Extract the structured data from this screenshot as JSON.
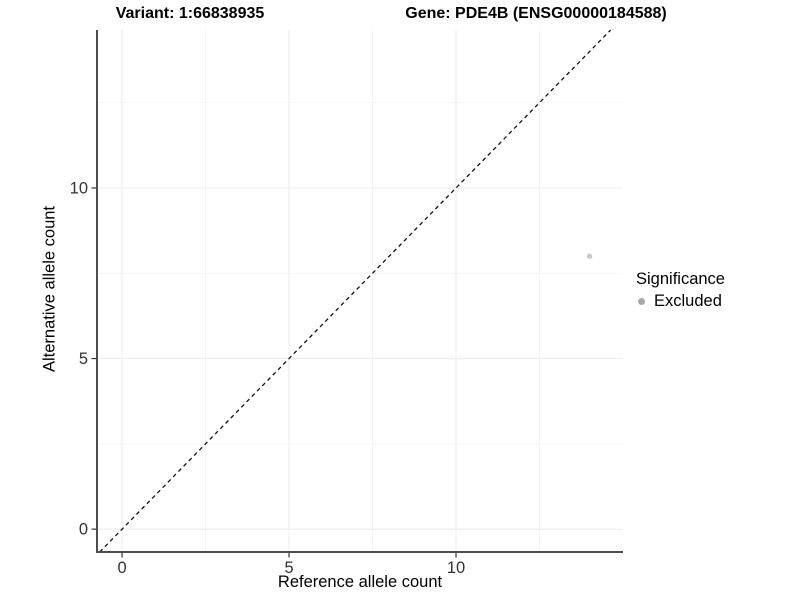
{
  "chart_data": {
    "type": "scatter",
    "title_left": "Variant: 1:66838935",
    "title_right": "Gene: PDE4B (ENSG00000184588)",
    "xlabel": "Reference allele count",
    "ylabel": "Alternative allele count",
    "xlim": [
      -0.75,
      15.0
    ],
    "ylim": [
      -0.67,
      14.63
    ],
    "x_ticks": [
      0,
      5,
      10
    ],
    "y_ticks": [
      0,
      5,
      10
    ],
    "x_minor_gridlines": [
      2.5,
      7.5,
      12.5
    ],
    "y_minor_gridlines": [
      2.5,
      7.5,
      12.5
    ],
    "grid": true,
    "points": [
      {
        "x": 14,
        "y": 8,
        "series": "Excluded"
      }
    ],
    "reference_line": {
      "slope": 1,
      "intercept": 0,
      "style": "dashed"
    },
    "legend": {
      "title": "Significance",
      "position": "right",
      "items": [
        {
          "label": "Excluded",
          "color": "#a8a8a8"
        }
      ]
    },
    "colors": {
      "background": "#ffffff",
      "point": "#c9c9c9",
      "grid_major": "#ebebeb",
      "grid_minor": "#f4f4f4",
      "axis_line": "#4d4d4d",
      "tick_mark": "#333333",
      "tick_label": "#333333",
      "dashed_line": "#111111"
    }
  }
}
